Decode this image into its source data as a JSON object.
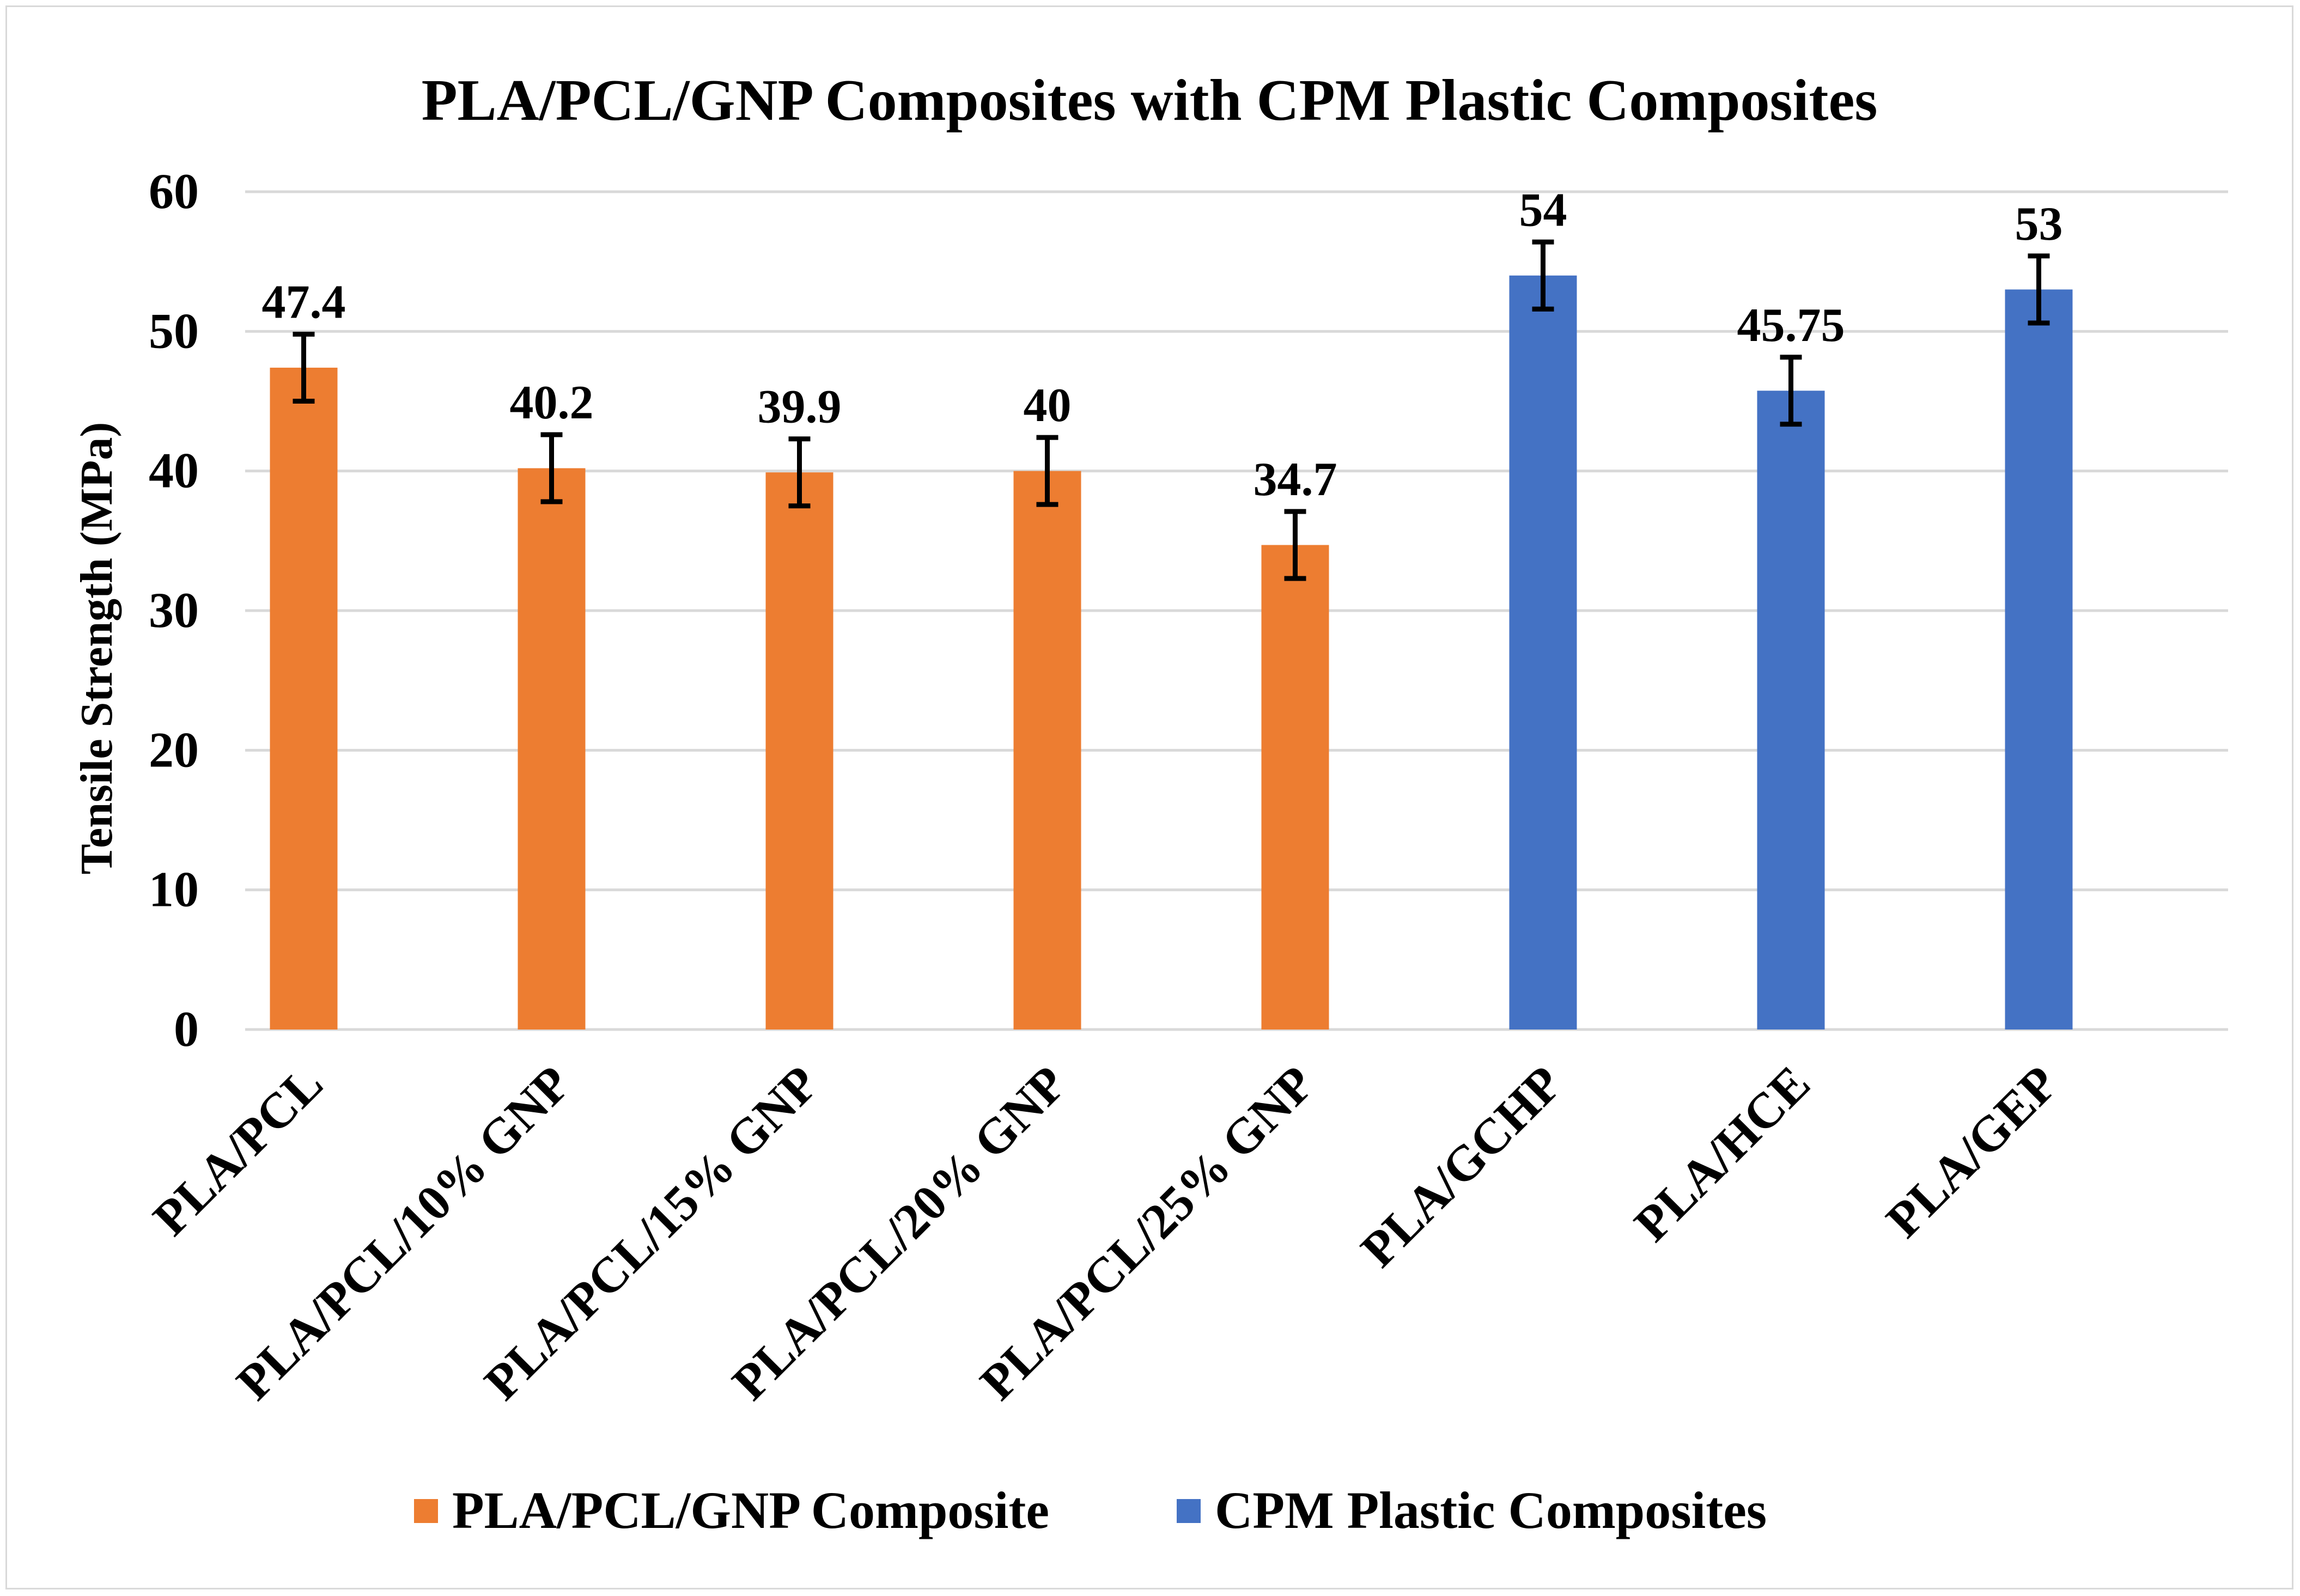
{
  "chart_data": {
    "type": "bar",
    "title": "PLA/PCL/GNP Composites with CPM Plastic Composites",
    "xlabel": "",
    "ylabel": "Tensile Strength (MPa)",
    "ylim": [
      0,
      60
    ],
    "yticks": [
      0,
      10,
      20,
      30,
      40,
      50,
      60
    ],
    "grid": true,
    "legend_position": "bottom",
    "categories": [
      "PLA/PCL",
      "PLA/PCL/10% GNP",
      "PLA/PCL/15% GNP",
      "PLA/PCL/20% GNP",
      "PLA/PCL/25% GNP",
      "PLA/GCHP",
      "PLA/HCE",
      "PLA/GEP"
    ],
    "series": [
      {
        "name": "PLA/PCL/GNP Composite",
        "color": "#ED7D31",
        "values": [
          47.4,
          40.2,
          39.9,
          40,
          34.7,
          null,
          null,
          null
        ],
        "labels": [
          "47.4",
          "40.2",
          "39.9",
          "40",
          "34.7",
          null,
          null,
          null
        ],
        "errors": [
          2.4,
          2.4,
          2.4,
          2.4,
          2.4,
          null,
          null,
          null
        ]
      },
      {
        "name": "CPM Plastic Composites",
        "color": "#4472C4",
        "values": [
          null,
          null,
          null,
          null,
          null,
          54,
          45.75,
          53
        ],
        "labels": [
          null,
          null,
          null,
          null,
          null,
          "54",
          "45.75",
          "53"
        ],
        "errors": [
          null,
          null,
          null,
          null,
          null,
          2.4,
          2.4,
          2.4
        ]
      }
    ]
  },
  "colors": {
    "gridline": "#d9d9d9",
    "error_bar": "#000000"
  }
}
